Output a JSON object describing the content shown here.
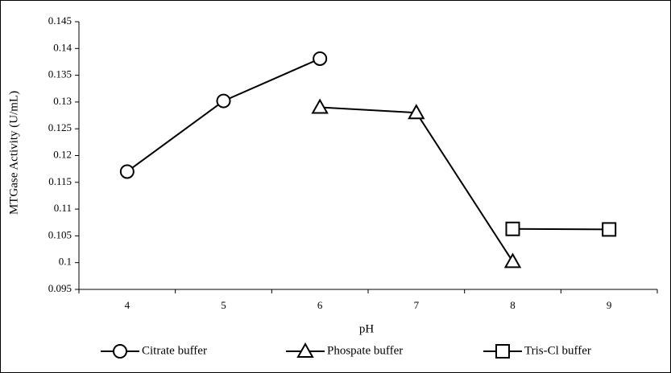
{
  "chart_data": {
    "type": "line",
    "x_label": "pH",
    "y_label": "MTGase Activity (U/mL)",
    "categories": [
      "4",
      "5",
      "6",
      "7",
      "8",
      "9"
    ],
    "series": [
      {
        "name": "Citrate buffer",
        "color": "#000000",
        "marker": "circle",
        "values": [
          0.117,
          0.1302,
          0.1381,
          null,
          null,
          null
        ]
      },
      {
        "name": "Phospate buffer",
        "color": "#000000",
        "marker": "triangle",
        "values": [
          null,
          null,
          0.129,
          0.128,
          0.1002,
          null
        ]
      },
      {
        "name": "Tris-Cl buffer",
        "color": "#000000",
        "marker": "square",
        "values": [
          null,
          null,
          null,
          null,
          0.1063,
          0.1062
        ]
      }
    ],
    "ylim": [
      0.095,
      0.145
    ],
    "yticks": [
      0.095,
      0.1,
      0.105,
      0.11,
      0.115,
      0.12,
      0.125,
      0.13,
      0.135,
      0.14,
      0.145
    ],
    "grid": false,
    "legend": "bottom"
  }
}
